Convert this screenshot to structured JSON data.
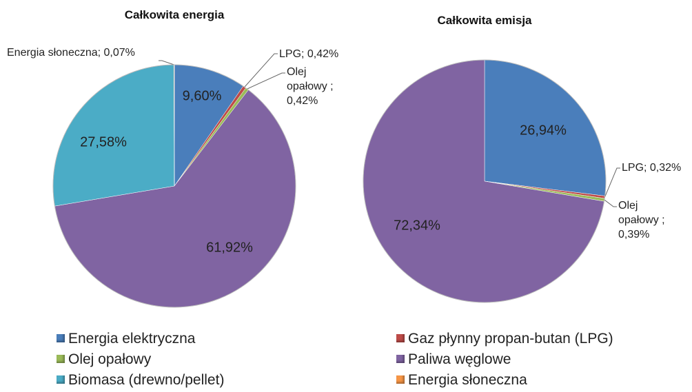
{
  "legend": {
    "categories": [
      "Energia elektryczna",
      "Gaz płynny propan-butan (LPG)",
      "Olej opałowy",
      "Paliwa węglowe",
      "Biomasa (drewno/pellet)",
      "Energia słoneczna"
    ],
    "colors": [
      "#4a7ebb",
      "#be4b48",
      "#9bbb59",
      "#8064a2",
      "#4bacc6",
      "#f79646"
    ]
  },
  "chart_data": [
    {
      "type": "pie",
      "title": "Całkowita energia",
      "values": [
        9.6,
        0.42,
        0.42,
        61.92,
        27.58,
        0.07
      ],
      "value_labels": [
        "9,60%",
        "LPG; 0,42%",
        "Olej opałowy ; 0,42%",
        "61,92%",
        "27,58%",
        "Energia słoneczna; 0,07%"
      ]
    },
    {
      "type": "pie",
      "title": "Całkowita emisja",
      "values": [
        26.94,
        0.32,
        0.39,
        72.34,
        null,
        null
      ],
      "value_labels": [
        "26,94%",
        "LPG; 0,32%",
        "Olej opałowy ; 0,39%",
        "72,34%",
        null,
        null
      ]
    }
  ]
}
